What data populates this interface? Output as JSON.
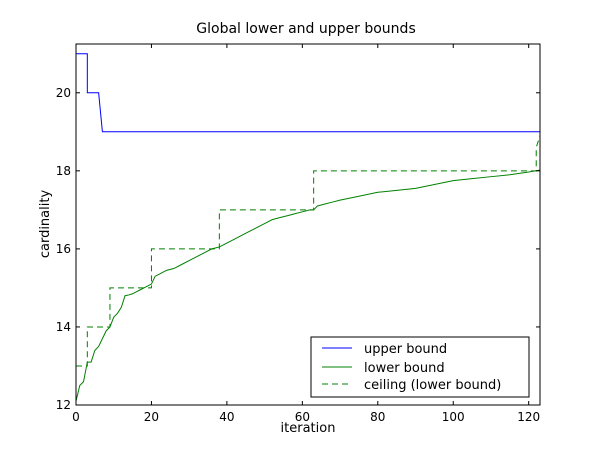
{
  "chart_data": {
    "type": "line",
    "title": "Global lower and upper bounds",
    "xlabel": "iteration",
    "ylabel": "cardinality",
    "xlim": [
      0,
      123
    ],
    "ylim": [
      12,
      21.25
    ],
    "xticks": [
      0,
      20,
      40,
      60,
      80,
      100,
      120
    ],
    "yticks": [
      12,
      14,
      16,
      18,
      20
    ],
    "grid": false,
    "legend_position": "lower-right",
    "series": [
      {
        "name": "upper bound",
        "style": "solid",
        "color": "#0000ff",
        "x": [
          0,
          3,
          3,
          5,
          5,
          6,
          6,
          7,
          7,
          123
        ],
        "y": [
          21,
          21,
          20,
          20,
          20,
          20,
          20,
          19,
          19,
          19
        ]
      },
      {
        "name": "lower bound",
        "style": "solid",
        "color": "#008000",
        "x": [
          0,
          1,
          2,
          3,
          4,
          5,
          6,
          7,
          8,
          9,
          10,
          11,
          12,
          13,
          14,
          15,
          16,
          17,
          18,
          19,
          20,
          21,
          22,
          24,
          26,
          28,
          30,
          32,
          34,
          36,
          38,
          40,
          42,
          44,
          46,
          48,
          50,
          52,
          54,
          56,
          58,
          60,
          62,
          63,
          64,
          66,
          68,
          70,
          75,
          80,
          85,
          90,
          95,
          100,
          105,
          110,
          115,
          120,
          123
        ],
        "y": [
          12.1,
          12.5,
          12.6,
          13.1,
          13.1,
          13.4,
          13.5,
          13.7,
          13.9,
          14.0,
          14.25,
          14.35,
          14.5,
          14.8,
          14.82,
          14.85,
          14.9,
          14.95,
          15.0,
          15.05,
          15.1,
          15.3,
          15.35,
          15.45,
          15.5,
          15.6,
          15.7,
          15.8,
          15.9,
          16.0,
          16.05,
          16.15,
          16.25,
          16.35,
          16.45,
          16.55,
          16.65,
          16.75,
          16.8,
          16.85,
          16.9,
          16.95,
          17.0,
          17.0,
          17.1,
          17.15,
          17.2,
          17.25,
          17.35,
          17.45,
          17.5,
          17.55,
          17.65,
          17.75,
          17.8,
          17.85,
          17.9,
          17.97,
          18.02
        ]
      },
      {
        "name": "ceiling (lower bound)",
        "style": "dashed",
        "color": "#008000",
        "x": [
          0,
          3,
          3,
          9,
          9,
          20,
          20,
          38,
          38,
          63,
          63,
          122,
          122,
          123
        ],
        "y": [
          13,
          13,
          14,
          14,
          15,
          15,
          16,
          16,
          17,
          17,
          18,
          18,
          18.6,
          18.9
        ]
      }
    ]
  }
}
